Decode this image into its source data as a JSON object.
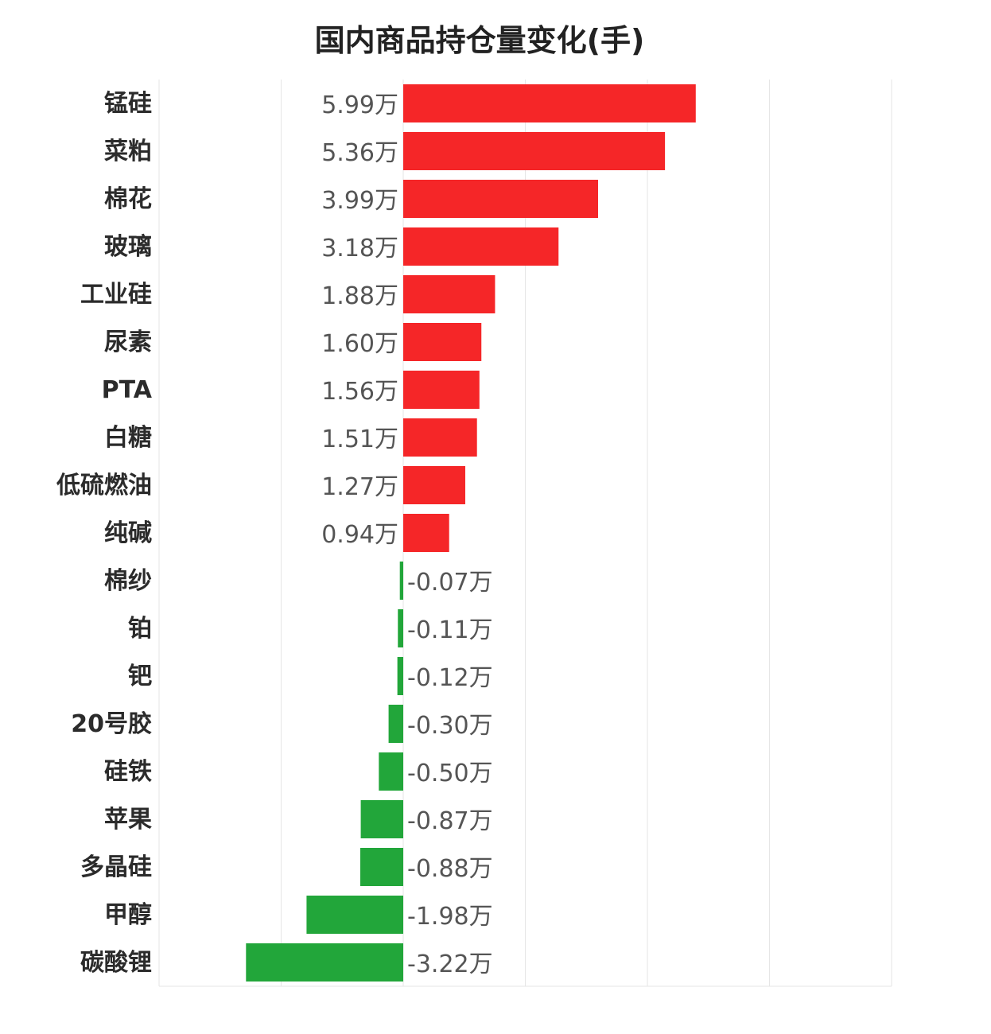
{
  "chart_data": {
    "type": "bar",
    "orientation": "horizontal",
    "title": "国内商品持仓量变化(手)",
    "xlim": [
      -5.0,
      10.0
    ],
    "grid": true,
    "colors": {
      "positive": "#f52628",
      "negative": "#22a63a"
    },
    "categories": [
      "锰硅",
      "菜粕",
      "棉花",
      "玻璃",
      "工业硅",
      "尿素",
      "PTA",
      "白糖",
      "低硫燃油",
      "纯碱",
      "棉纱",
      "铂",
      "钯",
      "20号胶",
      "硅铁",
      "苹果",
      "多晶硅",
      "甲醇",
      "碳酸锂"
    ],
    "values": [
      5.99,
      5.36,
      3.99,
      3.18,
      1.88,
      1.6,
      1.56,
      1.51,
      1.27,
      0.94,
      -0.07,
      -0.11,
      -0.12,
      -0.3,
      -0.5,
      -0.87,
      -0.88,
      -1.98,
      -3.22
    ],
    "labels": [
      "5.99万",
      "5.36万",
      "3.99万",
      "3.18万",
      "1.88万",
      "1.60万",
      "1.56万",
      "1.51万",
      "1.27万",
      "0.94万",
      "-0.07万",
      "-0.11万",
      "-0.12万",
      "-0.30万",
      "-0.50万",
      "-0.87万",
      "-0.88万",
      "-1.98万",
      "-3.22万"
    ]
  }
}
